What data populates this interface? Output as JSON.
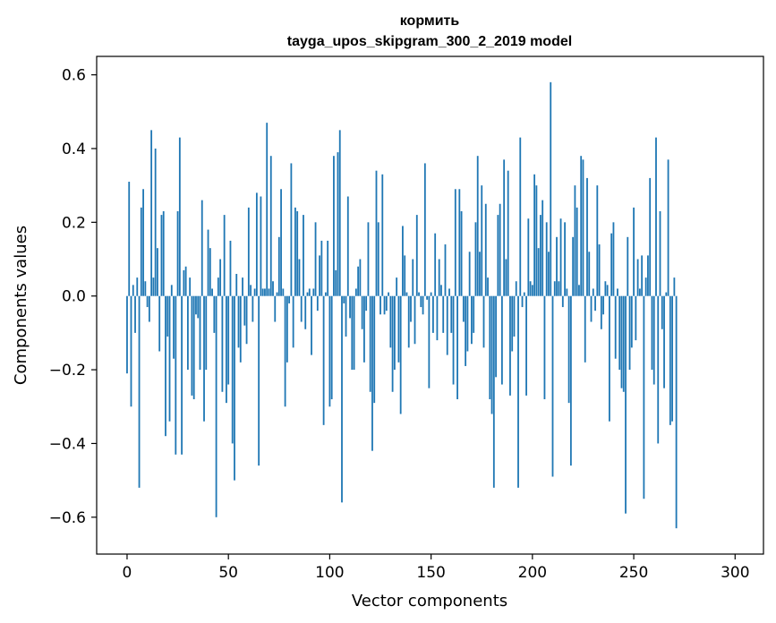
{
  "chart_data": {
    "type": "bar",
    "title_line1": "кормить",
    "title_line2": "tayga_upos_skipgram_300_2_2019 model",
    "xlabel": "Vector components",
    "ylabel": "Components values",
    "xlim": [
      -15,
      314
    ],
    "ylim": [
      -0.7,
      0.65
    ],
    "x_ticks": [
      0,
      50,
      100,
      150,
      200,
      250,
      300
    ],
    "x_tick_labels": [
      "0",
      "50",
      "100",
      "150",
      "200",
      "250",
      "300"
    ],
    "y_ticks": [
      -0.6,
      -0.4,
      -0.2,
      0.0,
      0.2,
      0.4,
      0.6
    ],
    "y_tick_labels": [
      "−0.6",
      "−0.4",
      "−0.2",
      "0.0",
      "0.2",
      "0.4",
      "0.6"
    ],
    "bar_color": "#1f77b4",
    "values": [
      -0.21,
      0.31,
      -0.3,
      0.03,
      -0.1,
      0.05,
      -0.52,
      0.24,
      0.29,
      0.04,
      -0.03,
      -0.07,
      0.45,
      0.05,
      0.4,
      0.13,
      -0.15,
      0.22,
      0.23,
      -0.38,
      -0.11,
      -0.34,
      0.03,
      -0.17,
      -0.43,
      0.23,
      0.43,
      -0.43,
      0.07,
      0.08,
      -0.2,
      0.05,
      -0.27,
      -0.28,
      -0.05,
      -0.06,
      -0.2,
      0.26,
      -0.34,
      -0.2,
      0.18,
      0.13,
      0.02,
      -0.1,
      -0.6,
      0.05,
      0.1,
      -0.26,
      0.22,
      -0.29,
      -0.24,
      0.15,
      -0.4,
      -0.5,
      0.06,
      -0.14,
      -0.18,
      0.05,
      -0.08,
      -0.13,
      0.24,
      0.03,
      -0.07,
      0.02,
      0.28,
      -0.46,
      0.27,
      0.02,
      0.02,
      0.47,
      0.02,
      0.38,
      0.04,
      -0.07,
      0.01,
      0.16,
      0.29,
      0.02,
      -0.3,
      -0.18,
      -0.02,
      0.36,
      -0.14,
      0.24,
      0.23,
      0.1,
      -0.07,
      0.22,
      -0.09,
      0.01,
      0.02,
      -0.16,
      0.02,
      0.2,
      -0.04,
      0.11,
      0.15,
      -0.35,
      0.01,
      0.15,
      -0.3,
      -0.28,
      0.38,
      0.07,
      0.39,
      0.45,
      -0.56,
      -0.02,
      -0.11,
      0.27,
      -0.06,
      -0.2,
      -0.2,
      0.02,
      0.08,
      0.1,
      -0.09,
      -0.18,
      -0.04,
      0.2,
      -0.26,
      -0.42,
      -0.29,
      0.34,
      0.2,
      -0.05,
      0.33,
      -0.05,
      -0.04,
      0.01,
      -0.14,
      -0.26,
      -0.2,
      0.05,
      -0.18,
      -0.32,
      0.19,
      0.11,
      0.01,
      -0.14,
      -0.07,
      0.1,
      -0.13,
      0.22,
      0.01,
      -0.03,
      -0.05,
      0.36,
      -0.01,
      -0.25,
      0.01,
      -0.1,
      0.17,
      -0.12,
      0.1,
      0.03,
      -0.1,
      0.14,
      -0.16,
      0.02,
      -0.1,
      -0.24,
      0.29,
      -0.28,
      0.29,
      0.23,
      -0.07,
      -0.19,
      -0.15,
      0.12,
      -0.13,
      -0.1,
      0.2,
      0.38,
      0.12,
      0.3,
      -0.14,
      0.25,
      0.05,
      -0.28,
      -0.32,
      -0.52,
      -0.22,
      0.22,
      0.25,
      -0.24,
      0.37,
      0.1,
      0.34,
      -0.27,
      -0.15,
      -0.11,
      0.04,
      -0.52,
      0.43,
      -0.03,
      0.01,
      -0.27,
      0.21,
      0.04,
      0.03,
      0.33,
      0.3,
      0.13,
      0.22,
      0.26,
      -0.28,
      0.2,
      0.12,
      0.58,
      -0.49,
      0.04,
      0.16,
      0.04,
      0.21,
      -0.03,
      0.2,
      0.02,
      -0.29,
      -0.46,
      0.16,
      0.3,
      0.24,
      0.03,
      0.38,
      0.37,
      -0.18,
      0.32,
      0.12,
      -0.07,
      0.02,
      -0.04,
      0.3,
      0.14,
      -0.09,
      -0.05,
      0.04,
      0.03,
      -0.34,
      0.17,
      0.2,
      -0.17,
      0.02,
      -0.2,
      -0.25,
      -0.26,
      -0.59,
      0.16,
      -0.2,
      -0.14,
      0.24,
      -0.12,
      0.1,
      0.02,
      0.11,
      -0.55,
      0.05,
      0.11,
      0.32,
      -0.2,
      -0.24,
      0.43,
      -0.4,
      0.23,
      -0.09,
      -0.25,
      0.01,
      0.37,
      -0.35,
      -0.34,
      0.05,
      -0.63
    ]
  }
}
